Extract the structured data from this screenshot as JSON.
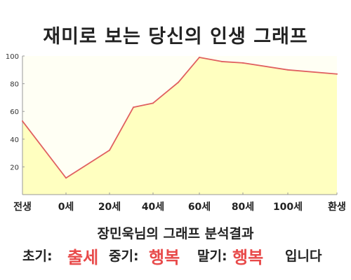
{
  "title": "재미로 보는 당신의 인생 그래프",
  "subtitle": "장민욱님의 그래프 분석결과",
  "result": {
    "early_label": "초기:",
    "early_value": "출세",
    "mid_label": "중기:",
    "mid_value": "행복",
    "late_label": "말기:",
    "late_value": "행복",
    "suffix": "입니다"
  },
  "colors": {
    "line": "#e06060",
    "fill": "#ffffc0",
    "accent": "#e84a4a",
    "axis": "#999999"
  },
  "chart_data": {
    "type": "area",
    "x_tick_labels": [
      "전생",
      "0세",
      "20세",
      "40세",
      "60세",
      "80세",
      "100세",
      "환생"
    ],
    "y_ticks": [
      20,
      40,
      60,
      80,
      100
    ],
    "ylim": [
      0,
      100
    ],
    "grid": false,
    "points": [
      {
        "x": "전생",
        "y": 53
      },
      {
        "x": "0세",
        "y": 12
      },
      {
        "x": "20세",
        "y": 32
      },
      {
        "x": "30세",
        "y": 63
      },
      {
        "x": "40세",
        "y": 66
      },
      {
        "x": "50세",
        "y": 81
      },
      {
        "x": "60세",
        "y": 99
      },
      {
        "x": "70세",
        "y": 96
      },
      {
        "x": "80세",
        "y": 95
      },
      {
        "x": "100세",
        "y": 90
      },
      {
        "x": "환생",
        "y": 87
      }
    ]
  }
}
